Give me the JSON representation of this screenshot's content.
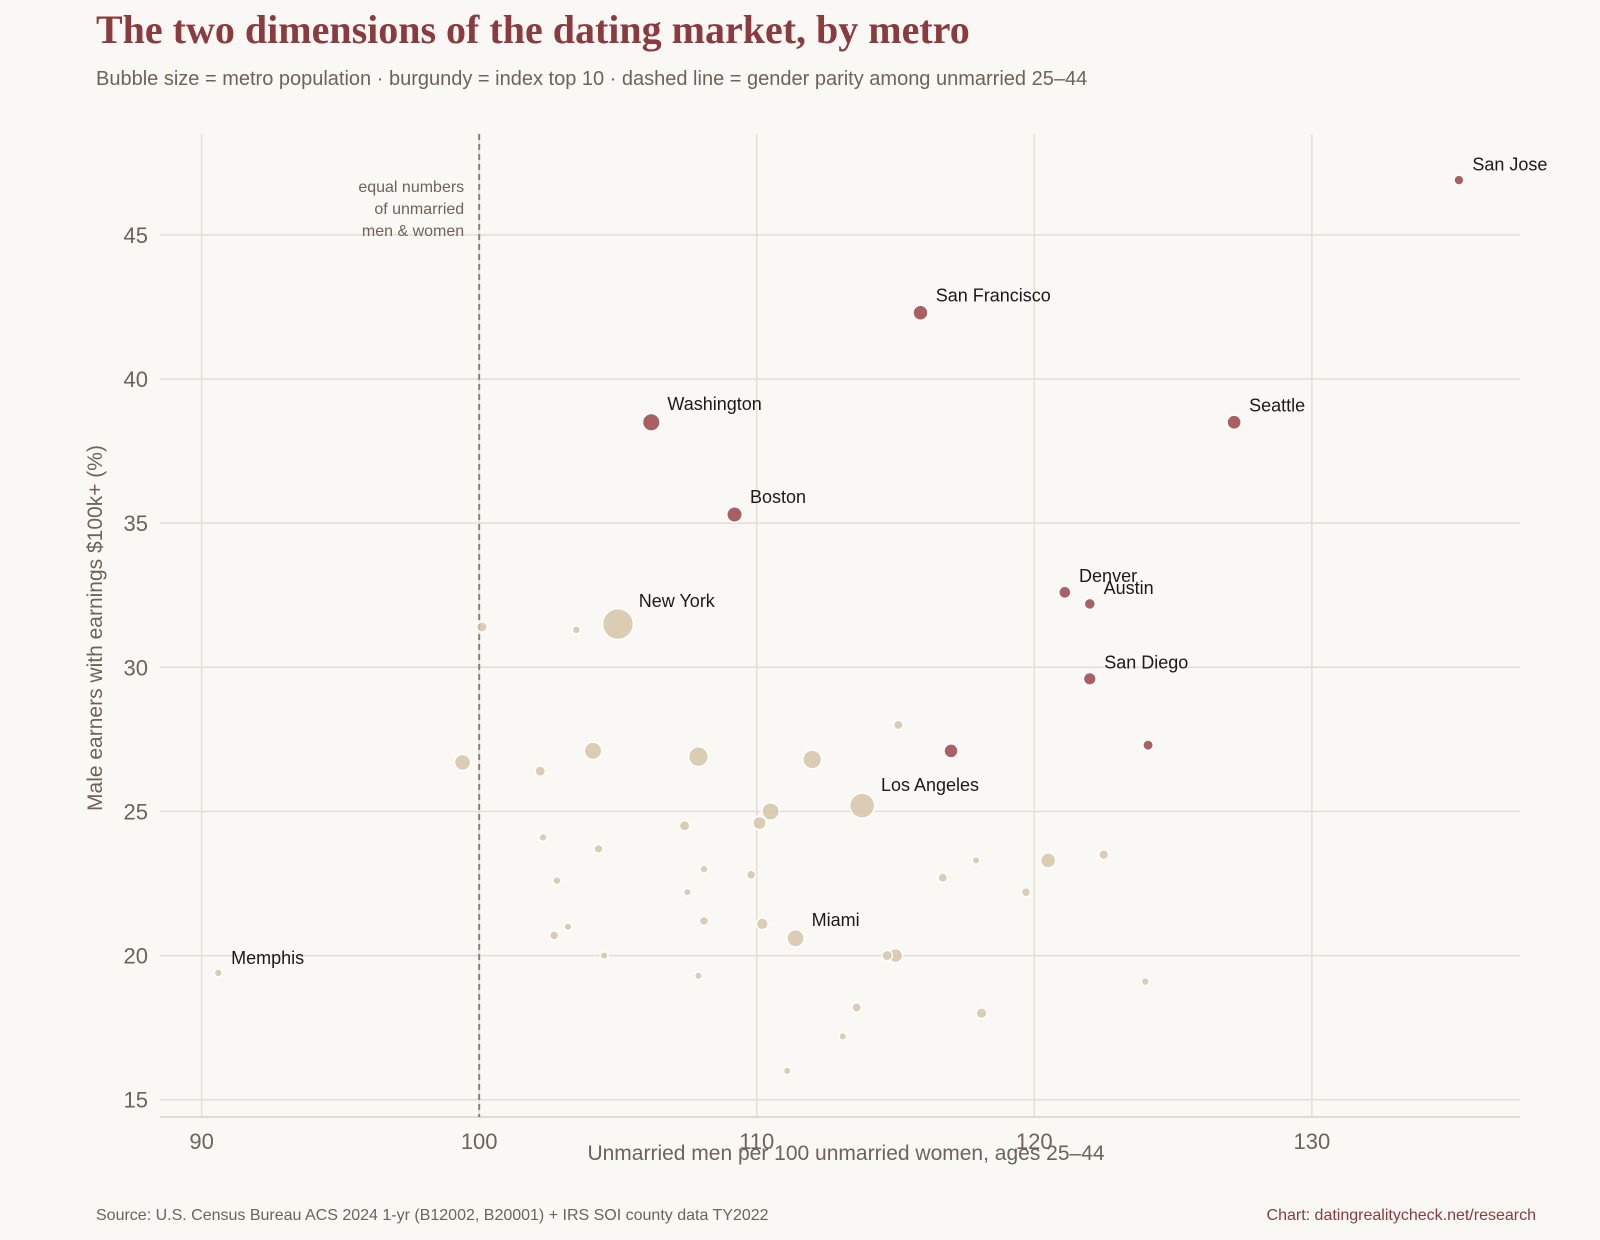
{
  "title": "The two dimensions of the dating market, by metro",
  "subtitle": "Bubble size = metro population · burgundy = index top 10 · dashed line = gender parity among unmarried 25–44",
  "source": "Source: U.S. Census Bureau ACS 2024 1-yr (B12002, B20001) + IRS SOI county data TY2022",
  "credit": "Chart: datingrealitycheck.net/research",
  "colors": {
    "background": "#faf8f5",
    "top10": "#9e4a4f",
    "other": "#d4c3a6",
    "title": "#8b3a3e",
    "grid": "#e6ddd4",
    "parity_line": "#8a8077",
    "muted_text": "#6e6259"
  },
  "chart_data": {
    "type": "scatter",
    "xlabel": "Unmarried men per 100 unmarried women, ages 25–44",
    "ylabel": "Male earners with earnings $100k+ (%)",
    "xlim": [
      88.5,
      137.5
    ],
    "ylim": [
      14.4,
      48.5
    ],
    "xticks": [
      90,
      100,
      110,
      120,
      130
    ],
    "yticks": [
      15,
      20,
      25,
      30,
      35,
      40,
      45
    ],
    "grid": true,
    "parity_line": {
      "x": 100,
      "label": [
        "equal numbers",
        "of unmarried",
        "men & women"
      ]
    },
    "points": [
      {
        "name": "San Jose",
        "x": 135.3,
        "y": 46.9,
        "pop": 2.0,
        "top10": true,
        "label": "San Jose"
      },
      {
        "name": "San Francisco",
        "x": 115.9,
        "y": 42.3,
        "pop": 4.6,
        "top10": true,
        "label": "San Francisco"
      },
      {
        "name": "Washington",
        "x": 106.2,
        "y": 38.5,
        "pop": 6.3,
        "top10": true,
        "label": "Washington"
      },
      {
        "name": "Seattle",
        "x": 127.2,
        "y": 38.5,
        "pop": 4.1,
        "top10": true,
        "label": "Seattle"
      },
      {
        "name": "Boston",
        "x": 109.2,
        "y": 35.3,
        "pop": 4.9,
        "top10": true,
        "label": "Boston"
      },
      {
        "name": "Denver",
        "x": 121.1,
        "y": 32.6,
        "pop": 3.0,
        "top10": true,
        "label": "Denver"
      },
      {
        "name": "Austin",
        "x": 122.0,
        "y": 32.2,
        "pop": 2.5,
        "top10": true,
        "label": "Austin"
      },
      {
        "name": "San Diego",
        "x": 122.0,
        "y": 29.6,
        "pop": 3.3,
        "top10": true,
        "label": "San Diego"
      },
      {
        "name": "top10-a",
        "x": 117.0,
        "y": 27.1,
        "pop": 4.0,
        "top10": true
      },
      {
        "name": "top10-b",
        "x": 124.1,
        "y": 27.3,
        "pop": 2.2,
        "top10": true
      },
      {
        "name": "New York",
        "x": 105.0,
        "y": 31.5,
        "pop": 19.5,
        "top10": false,
        "label": "New York"
      },
      {
        "name": "Los Angeles",
        "x": 113.8,
        "y": 25.2,
        "pop": 12.8,
        "top10": false,
        "label": "Los Angeles"
      },
      {
        "name": "Miami",
        "x": 111.4,
        "y": 20.6,
        "pop": 6.1,
        "top10": false,
        "label": "Miami"
      },
      {
        "name": "Memphis",
        "x": 90.6,
        "y": 19.4,
        "pop": 1.3,
        "top10": false,
        "label": "Memphis"
      },
      {
        "name": "m01",
        "x": 100.1,
        "y": 31.4,
        "pop": 2.2,
        "top10": false
      },
      {
        "name": "m02",
        "x": 103.5,
        "y": 31.3,
        "pop": 1.3,
        "top10": false
      },
      {
        "name": "m03",
        "x": 99.4,
        "y": 26.7,
        "pop": 5.3,
        "top10": false
      },
      {
        "name": "m04",
        "x": 102.2,
        "y": 26.4,
        "pop": 2.2,
        "top10": false
      },
      {
        "name": "m05",
        "x": 104.1,
        "y": 27.1,
        "pop": 6.2,
        "top10": false
      },
      {
        "name": "m06",
        "x": 107.9,
        "y": 26.9,
        "pop": 8.0,
        "top10": false
      },
      {
        "name": "m07",
        "x": 112.0,
        "y": 26.8,
        "pop": 7.2,
        "top10": false
      },
      {
        "name": "m08",
        "x": 115.1,
        "y": 28.0,
        "pop": 1.8,
        "top10": false
      },
      {
        "name": "m09",
        "x": 110.5,
        "y": 25.0,
        "pop": 6.2,
        "top10": false
      },
      {
        "name": "m10",
        "x": 110.1,
        "y": 24.6,
        "pop": 3.6,
        "top10": false
      },
      {
        "name": "m11",
        "x": 107.4,
        "y": 24.5,
        "pop": 2.2,
        "top10": false
      },
      {
        "name": "m12",
        "x": 102.3,
        "y": 24.1,
        "pop": 1.3,
        "top10": false
      },
      {
        "name": "m13",
        "x": 104.3,
        "y": 23.7,
        "pop": 1.6,
        "top10": false
      },
      {
        "name": "m14",
        "x": 108.1,
        "y": 23.0,
        "pop": 1.3,
        "top10": false
      },
      {
        "name": "m15",
        "x": 102.8,
        "y": 22.6,
        "pop": 1.3,
        "top10": false
      },
      {
        "name": "m16",
        "x": 109.8,
        "y": 22.8,
        "pop": 1.7,
        "top10": false
      },
      {
        "name": "m17",
        "x": 107.5,
        "y": 22.2,
        "pop": 1.2,
        "top10": false
      },
      {
        "name": "m18",
        "x": 116.7,
        "y": 22.7,
        "pop": 1.8,
        "top10": false
      },
      {
        "name": "m19",
        "x": 117.9,
        "y": 23.3,
        "pop": 1.2,
        "top10": false
      },
      {
        "name": "m20",
        "x": 120.5,
        "y": 23.3,
        "pop": 4.6,
        "top10": false
      },
      {
        "name": "m21",
        "x": 122.5,
        "y": 23.5,
        "pop": 2.0,
        "top10": false
      },
      {
        "name": "m22",
        "x": 119.7,
        "y": 22.2,
        "pop": 1.7,
        "top10": false
      },
      {
        "name": "m23",
        "x": 103.2,
        "y": 21.0,
        "pop": 1.2,
        "top10": false
      },
      {
        "name": "m24",
        "x": 102.7,
        "y": 20.7,
        "pop": 1.7,
        "top10": false
      },
      {
        "name": "m25",
        "x": 108.1,
        "y": 21.2,
        "pop": 1.7,
        "top10": false
      },
      {
        "name": "m26",
        "x": 110.2,
        "y": 21.1,
        "pop": 2.8,
        "top10": false
      },
      {
        "name": "m27",
        "x": 104.5,
        "y": 20.0,
        "pop": 1.2,
        "top10": false
      },
      {
        "name": "m28",
        "x": 114.7,
        "y": 20.0,
        "pop": 2.2,
        "top10": false
      },
      {
        "name": "m29",
        "x": 115.0,
        "y": 20.0,
        "pop": 4.1,
        "top10": false
      },
      {
        "name": "m30",
        "x": 107.9,
        "y": 19.3,
        "pop": 1.2,
        "top10": false
      },
      {
        "name": "m31",
        "x": 124.0,
        "y": 19.1,
        "pop": 1.3,
        "top10": false
      },
      {
        "name": "m32",
        "x": 113.6,
        "y": 18.2,
        "pop": 1.8,
        "top10": false
      },
      {
        "name": "m33",
        "x": 118.1,
        "y": 18.0,
        "pop": 2.3,
        "top10": false
      },
      {
        "name": "m34",
        "x": 113.1,
        "y": 17.2,
        "pop": 1.2,
        "top10": false
      },
      {
        "name": "m35",
        "x": 111.1,
        "y": 16.0,
        "pop": 1.2,
        "top10": false
      }
    ]
  }
}
